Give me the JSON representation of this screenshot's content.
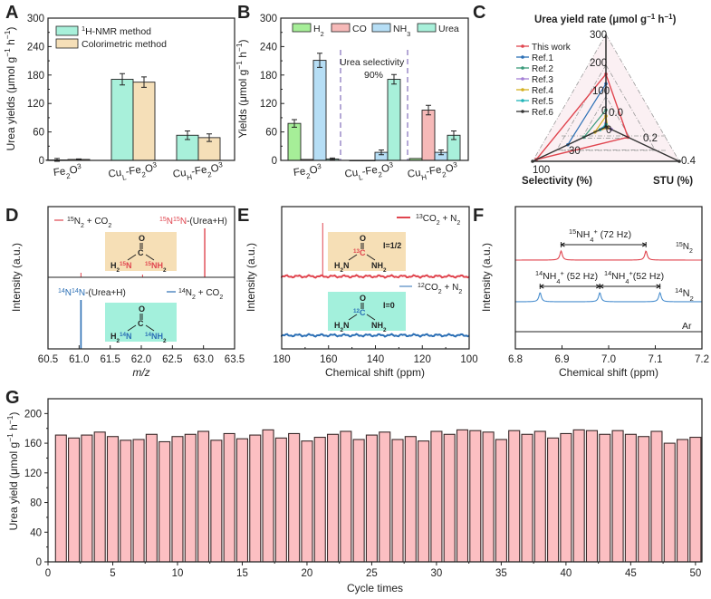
{
  "panels": {
    "A": {
      "label": "A"
    },
    "B": {
      "label": "B"
    },
    "C": {
      "label": "C"
    },
    "D": {
      "label": "D"
    },
    "E": {
      "label": "E"
    },
    "F": {
      "label": "F"
    },
    "G": {
      "label": "G"
    }
  },
  "colors": {
    "nmr": "#a8f0da",
    "colorimetric": "#f5dfb8",
    "h2": "#a6ee98",
    "co": "#f6b9b8",
    "nh3": "#b6def5",
    "urea": "#a8f0da",
    "red": "#e0454f",
    "blue": "#2b6fb5",
    "cycle_bar": "#fcbfc2",
    "box_orange": "#f6dfb6",
    "box_teal": "#a3f0dc",
    "divider": "#9b8bc9"
  },
  "chart_data": [
    {
      "id": "A",
      "type": "bar",
      "title": "",
      "xlabel": "",
      "ylabel": "Urea yields (μmol g⁻¹ h⁻¹)",
      "ylim": [
        0,
        300
      ],
      "yticks": [
        "0",
        "60",
        "120",
        "180",
        "240",
        "300"
      ],
      "categories": [
        "Fe2O3",
        "CuL-Fe2O3",
        "CuH-Fe2O3"
      ],
      "category_labels": [
        {
          "main": "Fe",
          "sub1": "2",
          "mid": "O",
          "sub2": "3",
          "pre": "",
          "presub": ""
        },
        {
          "main": "Fe",
          "sub1": "2",
          "mid": "O",
          "sub2": "3",
          "pre": "Cu",
          "presub": "L"
        },
        {
          "main": "Fe",
          "sub1": "2",
          "mid": "O",
          "sub2": "3",
          "pre": "Cu",
          "presub": "H"
        }
      ],
      "series": [
        {
          "name": "¹H-NMR method",
          "values": [
            1,
            171,
            53
          ],
          "errors": [
            3,
            12,
            9
          ]
        },
        {
          "name": "Colorimetric method",
          "values": [
            2,
            165,
            48
          ],
          "errors": [
            1,
            11,
            8
          ]
        }
      ],
      "legend": "top-left"
    },
    {
      "id": "B",
      "type": "bar",
      "ylabel": "Yields (μmol g⁻¹ h⁻¹)",
      "ylim": [
        0,
        300
      ],
      "yticks": [
        "0",
        "60",
        "120",
        "180",
        "240",
        "300"
      ],
      "categories": [
        "Fe2O3",
        "CuL-Fe2O3",
        "CuH-Fe2O3"
      ],
      "series": [
        {
          "name": "H2",
          "label_main": "H",
          "label_sub": "2",
          "values": [
            78,
            0,
            4
          ],
          "errors": [
            8,
            0,
            0
          ]
        },
        {
          "name": "CO",
          "label_main": "CO",
          "label_sub": "",
          "values": [
            2,
            0,
            106
          ],
          "errors": [
            0,
            0,
            10
          ]
        },
        {
          "name": "NH3",
          "label_main": "NH",
          "label_sub": "3",
          "values": [
            211,
            17,
            17
          ],
          "errors": [
            15,
            5,
            5
          ]
        },
        {
          "name": "Urea",
          "label_main": "Urea",
          "label_sub": "",
          "values": [
            3,
            171,
            53
          ],
          "errors": [
            2,
            10,
            9
          ]
        }
      ],
      "annotation": {
        "line1": "Urea selectivity",
        "line2": "90%"
      },
      "legend": "top"
    },
    {
      "id": "C",
      "type": "radar",
      "title": "Urea yield rate (μmol g⁻¹ h⁻¹)",
      "axes": [
        {
          "name": "Urea yield rate",
          "range": [
            0,
            300
          ],
          "ticks": [
            "0",
            "100",
            "200",
            "300"
          ]
        },
        {
          "name": "Selectivity (%)",
          "range": [
            0,
            100
          ],
          "ticks": [
            "30",
            "100"
          ]
        },
        {
          "name": "STU (%)",
          "range": [
            0,
            0.4
          ],
          "ticks": [
            "0.0",
            "0.2",
            "0.4"
          ]
        }
      ],
      "series": [
        {
          "name": "This work",
          "color": "#e0454f",
          "marker": "square",
          "values": [
            171,
            95,
            0.12
          ]
        },
        {
          "name": "Ref.1",
          "color": "#2b6fb5",
          "marker": "circle",
          "values": [
            140,
            52,
            0.0
          ]
        },
        {
          "name": "Ref.2",
          "color": "#3a9a7a",
          "marker": "triangle",
          "values": [
            55,
            30,
            0.0
          ]
        },
        {
          "name": "Ref.3",
          "color": "#a47fd6",
          "marker": "tri-down",
          "values": [
            12,
            5,
            0.03
          ]
        },
        {
          "name": "Ref.4",
          "color": "#d4b021",
          "marker": "diamond",
          "values": [
            35,
            15,
            0.01
          ]
        },
        {
          "name": "Ref.5",
          "color": "#1fb4b8",
          "marker": "tri-left",
          "values": [
            8,
            8,
            0.0
          ]
        },
        {
          "name": "Ref.6",
          "color": "#333333",
          "marker": "tri-right",
          "values": [
            0,
            100,
            0.4
          ]
        }
      ],
      "legend": "top-left"
    },
    {
      "id": "D",
      "type": "line",
      "xlabel": "m/z",
      "ylabel": "Intensity (a.u.)",
      "xlim": [
        60.5,
        63.5
      ],
      "xticks": [
        "60.5",
        "61.0",
        "61.5",
        "62.0",
        "62.5",
        "63.0",
        "63.5"
      ],
      "series": [
        {
          "name": "¹⁵N₂ + CO₂",
          "peak_label": "¹⁵N¹⁵N-(Urea+H)",
          "peaks": [
            {
              "x": 63.02,
              "rel": 1.0
            },
            {
              "x": 61.03,
              "rel": 0.08
            },
            {
              "x": 62.02,
              "rel": 0.04
            }
          ]
        },
        {
          "name": "¹⁴N₂ + CO₂",
          "peak_label": "¹⁴N¹⁴N-(Urea+H)",
          "peaks": [
            {
              "x": 61.03,
              "rel": 1.0
            }
          ]
        }
      ],
      "molecules": [
        {
          "top": "O",
          "center": "C",
          "left": "H₂",
          "left_iso": "15",
          "left_atom": "N",
          "right_iso": "15",
          "right_atom": "NH₂"
        },
        {
          "top": "O",
          "center": "C",
          "left": "H₂",
          "left_iso": "14",
          "left_atom": "N",
          "right_iso": "14",
          "right_atom": "NH₂"
        }
      ]
    },
    {
      "id": "E",
      "type": "line",
      "xlabel": "Chemical shift (ppm)",
      "ylabel": "Intensity (a.u.)",
      "xlim": [
        180,
        100
      ],
      "xticks": [
        "180",
        "160",
        "140",
        "120",
        "100"
      ],
      "series": [
        {
          "name": "¹³CO₂ + N₂",
          "peaks": [
            {
              "x": 162.5,
              "rel": 1.0
            }
          ]
        },
        {
          "name": "¹²CO₂ + N₂",
          "peaks": []
        }
      ],
      "annotations": [
        {
          "iso": "13",
          "spin": "I=1/2"
        },
        {
          "iso": "12",
          "spin": "I=0"
        }
      ]
    },
    {
      "id": "F",
      "type": "line",
      "xlabel": "Chemical shift (ppm)",
      "ylabel": "Intensity (a.u.)",
      "xlim": [
        6.8,
        7.2
      ],
      "xticks": [
        "6.8",
        "6.9",
        "7.0",
        "7.1",
        "7.2"
      ],
      "series": [
        {
          "name": "¹⁵N₂",
          "peaks": [
            {
              "x": 6.898
            },
            {
              "x": 7.08
            }
          ]
        },
        {
          "name": "¹⁴N₂",
          "peaks": [
            {
              "x": 6.853
            },
            {
              "x": 6.981
            },
            {
              "x": 7.11
            }
          ]
        },
        {
          "name": "Ar",
          "peaks": []
        }
      ],
      "annotations": [
        {
          "text": "¹⁵NH₄⁺ (72 Hz)",
          "from": 6.898,
          "to": 7.08
        },
        {
          "text": "¹⁴NH₄⁺ (52 Hz)",
          "from": 6.853,
          "to": 6.981
        },
        {
          "text": "¹⁴NH₄⁺(52 Hz)",
          "from": 6.981,
          "to": 7.11
        }
      ]
    },
    {
      "id": "G",
      "type": "bar",
      "xlabel": "Cycle times",
      "ylabel": "Urea yield (μmol g⁻¹ h⁻¹)",
      "ylim": [
        0,
        220
      ],
      "xlim": [
        0,
        50.5
      ],
      "yticks": [
        "0",
        "40",
        "80",
        "120",
        "160",
        "200"
      ],
      "xticks": [
        "0",
        "5",
        "10",
        "15",
        "20",
        "25",
        "30",
        "35",
        "40",
        "45",
        "50"
      ],
      "x": [
        1,
        2,
        3,
        4,
        5,
        6,
        7,
        8,
        9,
        10,
        11,
        12,
        13,
        14,
        15,
        16,
        17,
        18,
        19,
        20,
        21,
        22,
        23,
        24,
        25,
        26,
        27,
        28,
        29,
        30,
        31,
        32,
        33,
        34,
        35,
        36,
        37,
        38,
        39,
        40,
        41,
        42,
        43,
        44,
        45,
        46,
        47,
        48,
        49,
        50
      ],
      "values": [
        171,
        167,
        171,
        175,
        169,
        164,
        165,
        172,
        162,
        169,
        172,
        176,
        164,
        173,
        166,
        171,
        178,
        167,
        173,
        163,
        168,
        172,
        176,
        165,
        171,
        175,
        165,
        169,
        163,
        176,
        172,
        178,
        177,
        175,
        165,
        177,
        172,
        176,
        167,
        173,
        178,
        177,
        172,
        177,
        172,
        169,
        176,
        160,
        165,
        168
      ]
    }
  ]
}
